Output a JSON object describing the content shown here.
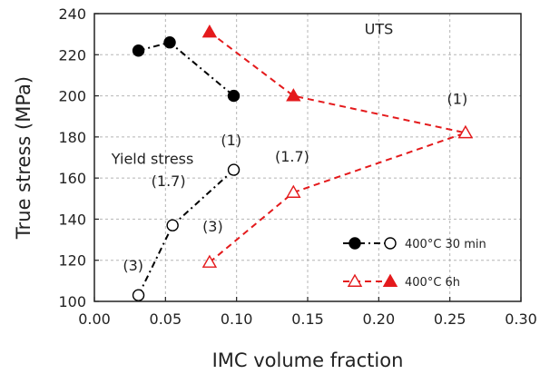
{
  "chart_data": {
    "type": "scatter",
    "xlabel": "IMC volume fraction",
    "ylabel": "True stress (MPa)",
    "xlim": [
      0.0,
      0.3
    ],
    "ylim": [
      100,
      240
    ],
    "x_ticks": [
      0.0,
      0.05,
      0.1,
      0.15,
      0.2,
      0.25,
      0.3
    ],
    "x_tick_labels": [
      "0.00",
      "0.05",
      "0.10",
      "0.15",
      "0.20",
      "0.25",
      "0.30"
    ],
    "y_ticks": [
      100,
      120,
      140,
      160,
      180,
      200,
      220,
      240
    ],
    "y_tick_labels": [
      "100",
      "120",
      "140",
      "160",
      "180",
      "200",
      "220",
      "240"
    ],
    "grid": true,
    "legend_position": "bottom-right",
    "series": [
      {
        "name": "400°C 30 min",
        "property": "UTS",
        "color": "#000000",
        "marker": "filled-circle",
        "line": "dash-dot",
        "points": [
          [
            0.031,
            222
          ],
          [
            0.053,
            226
          ],
          [
            0.098,
            200
          ]
        ]
      },
      {
        "name": "400°C 30 min",
        "property": "Yield stress",
        "color": "#000000",
        "marker": "open-circle",
        "line": "dash-dot",
        "points": [
          [
            0.031,
            103
          ],
          [
            0.055,
            137
          ],
          [
            0.098,
            164
          ]
        ]
      },
      {
        "name": "400°C 6h",
        "property": "UTS",
        "color": "#e41a1c",
        "marker": "filled-triangle",
        "line": "dashed",
        "points": [
          [
            0.081,
            231
          ],
          [
            0.14,
            200
          ],
          [
            0.261,
            182
          ]
        ]
      },
      {
        "name": "400°C 6h",
        "property": "Yield stress",
        "color": "#e41a1c",
        "marker": "open-triangle",
        "line": "dashed",
        "points": [
          [
            0.081,
            119
          ],
          [
            0.14,
            153
          ],
          [
            0.261,
            182
          ]
        ]
      }
    ],
    "annotations": [
      {
        "text": "UTS",
        "x": 0.19,
        "y": 230
      },
      {
        "text": "Yield stress",
        "x": 0.012,
        "y": 167
      },
      {
        "text": "(1)",
        "x": 0.089,
        "y": 176
      },
      {
        "text": "(1.7)",
        "x": 0.04,
        "y": 156
      },
      {
        "text": "(3)",
        "x": 0.02,
        "y": 115
      },
      {
        "text": "(1.7)",
        "x": 0.127,
        "y": 168
      },
      {
        "text": "(3)",
        "x": 0.076,
        "y": 134
      },
      {
        "text": "(1)",
        "x": 0.248,
        "y": 196
      }
    ],
    "legend": [
      {
        "label": "400°C 30 min",
        "color": "#000000",
        "line": "dash-dot",
        "marker_left": "filled-circle",
        "marker_right": "open-circle"
      },
      {
        "label": "400°C 6h",
        "color": "#e41a1c",
        "line": "dashed",
        "marker_left": "open-triangle",
        "marker_right": "filled-triangle"
      }
    ]
  }
}
